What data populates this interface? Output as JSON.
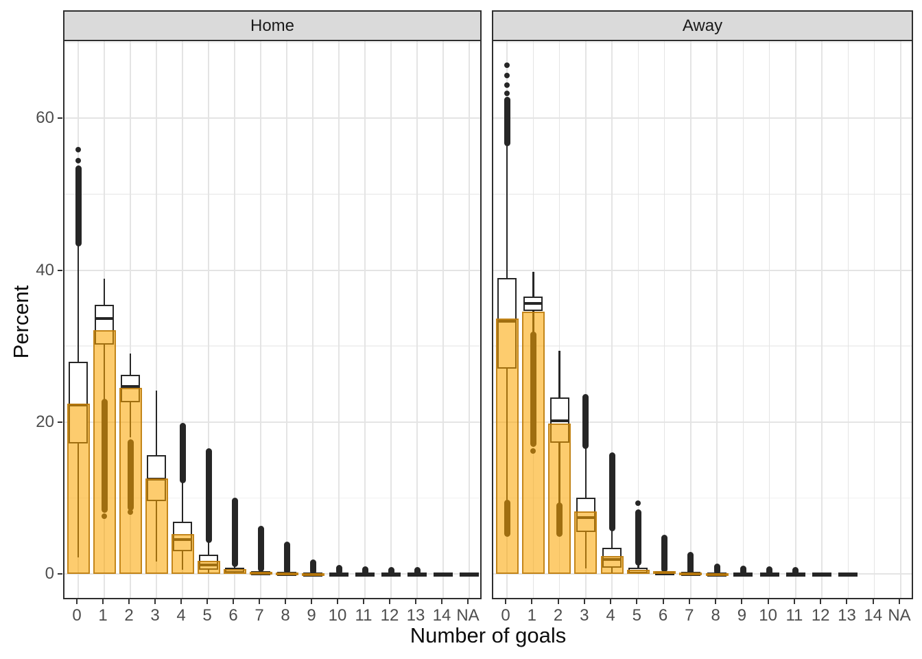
{
  "chart_data": {
    "type": "bar+boxplot",
    "xlabel": "Number of goals",
    "ylabel": "Percent",
    "categories": [
      "0",
      "1",
      "2",
      "3",
      "4",
      "5",
      "6",
      "7",
      "8",
      "9",
      "10",
      "11",
      "12",
      "13",
      "14",
      "NA"
    ],
    "y_axis": {
      "ticks": [
        0,
        20,
        40,
        60
      ],
      "minor": [
        10,
        30,
        50,
        70
      ],
      "ylim": [
        -3.3,
        70.2
      ]
    },
    "grid": "on",
    "legend": "none",
    "facets": [
      {
        "label": "Home",
        "items": [
          {
            "cat": "0",
            "bar": 22.4,
            "wh": 43.5,
            "q3": 27.9,
            "med": 22.2,
            "q1": 17.2,
            "wl": 2.2,
            "out_above": [
              43.5,
              53.4
            ],
            "dots_above": [
              54.4,
              55.9
            ],
            "out_below": null,
            "dots_below": null
          },
          {
            "cat": "1",
            "bar": 32.1,
            "wh": 38.9,
            "q3": 35.4,
            "med": 33.6,
            "q1": 30.2,
            "wl": 23.0,
            "out_above": null,
            "dots_above": null,
            "out_below": [
              8.4,
              22.7
            ],
            "dots_below": [
              7.6
            ]
          },
          {
            "cat": "2",
            "bar": 24.5,
            "wh": 29.0,
            "q3": 26.2,
            "med": 24.7,
            "q1": 22.6,
            "wl": 18.0,
            "out_above": null,
            "dots_above": null,
            "out_below": [
              8.7,
              17.4
            ],
            "dots_below": [
              8.1
            ]
          },
          {
            "cat": "3",
            "bar": 12.6,
            "wh": 24.1,
            "q3": 15.6,
            "med": 12.5,
            "q1": 9.6,
            "wl": 1.6,
            "out_above": null,
            "dots_above": null,
            "out_below": null,
            "dots_below": null
          },
          {
            "cat": "4",
            "bar": 5.2,
            "wh": 12.3,
            "q3": 6.9,
            "med": 4.5,
            "q1": 3.0,
            "wl": 0.5,
            "out_above": [
              12.3,
              19.5
            ],
            "dots_above": null,
            "out_below": null,
            "dots_below": null
          },
          {
            "cat": "5",
            "bar": 1.75,
            "wh": 4.2,
            "q3": 2.5,
            "med": 1.15,
            "q1": 0.54,
            "wl": 0.1,
            "out_above": [
              4.4,
              16.2
            ],
            "dots_above": null,
            "out_below": null,
            "dots_below": null
          },
          {
            "cat": "6",
            "bar": 0.63,
            "wh": 1.2,
            "q3": 0.84,
            "med": 0.39,
            "q1": 0.2,
            "wl": 0.05,
            "out_above": [
              1.3,
              9.7
            ],
            "dots_above": null,
            "out_below": null,
            "dots_below": null
          },
          {
            "cat": "7",
            "bar": 0.3,
            "wh": 0.6,
            "q3": 0.36,
            "med": 0.18,
            "q1": 0.05,
            "wl": null,
            "out_above": [
              0.6,
              6.0
            ],
            "dots_above": null,
            "out_below": null,
            "dots_below": null
          },
          {
            "cat": "8",
            "bar": 0.15,
            "wh": null,
            "q3": 0.25,
            "med": 0.12,
            "q1": 0.03,
            "wl": null,
            "out_above": [
              0.4,
              3.9
            ],
            "dots_above": null,
            "out_below": null,
            "dots_below": null
          },
          {
            "cat": "9",
            "bar": 0.06,
            "wh": null,
            "q3": 0.22,
            "med": 0.1,
            "q1": 0.02,
            "wl": null,
            "out_above": [
              0.3,
              1.5
            ],
            "dots_above": null,
            "out_below": null,
            "dots_below": null
          },
          {
            "cat": "10",
            "bar": null,
            "wh": null,
            "q3": 0.2,
            "med": 0.09,
            "q1": 0.02,
            "wl": null,
            "out_above": [
              0.25,
              0.8
            ],
            "dots_above": null,
            "out_below": null,
            "dots_below": null
          },
          {
            "cat": "11",
            "bar": null,
            "wh": null,
            "q3": 0.2,
            "med": 0.09,
            "q1": 0.02,
            "wl": null,
            "out_above": [
              0.2,
              0.6
            ],
            "dots_above": null,
            "out_below": null,
            "dots_below": null
          },
          {
            "cat": "12",
            "bar": null,
            "wh": null,
            "q3": 0.2,
            "med": 0.09,
            "q1": 0.02,
            "wl": null,
            "out_above": [
              0.18,
              0.5
            ],
            "dots_above": null,
            "out_below": null,
            "dots_below": null
          },
          {
            "cat": "13",
            "bar": null,
            "wh": null,
            "q3": 0.2,
            "med": 0.09,
            "q1": 0.02,
            "wl": null,
            "out_above": [
              0.18,
              0.5
            ],
            "dots_above": null,
            "out_below": null,
            "dots_below": null
          },
          {
            "cat": "14",
            "bar": null,
            "wh": null,
            "q3": 0.2,
            "med": null,
            "q1": 0.02,
            "wl": null,
            "out_above": null,
            "dots_above": null,
            "out_below": null,
            "dots_below": null
          },
          {
            "cat": "NA",
            "bar": null,
            "wh": null,
            "q3": 0.2,
            "med": null,
            "q1": 0.02,
            "wl": null,
            "out_above": null,
            "dots_above": null,
            "out_below": null,
            "dots_below": null
          }
        ]
      },
      {
        "label": "Away",
        "items": [
          {
            "cat": "0",
            "bar": 33.6,
            "wh": 56.7,
            "q3": 39.0,
            "med": 33.3,
            "q1": 27.0,
            "wl": 9.4,
            "out_above": [
              56.7,
              62.5
            ],
            "dots_above": [
              63.3,
              64.4,
              65.6,
              67.0
            ],
            "out_below": [
              5.2,
              9.4
            ],
            "dots_below": null
          },
          {
            "cat": "1",
            "bar": 34.5,
            "wh": 39.8,
            "q3": 36.5,
            "med": 35.6,
            "q1": 34.6,
            "wl": 31.6,
            "out_above": null,
            "dots_above": null,
            "out_below": [
              17.1,
              31.6
            ],
            "dots_below": [
              16.2
            ]
          },
          {
            "cat": "2",
            "bar": 19.8,
            "wh": 29.4,
            "q3": 23.2,
            "med": 20.2,
            "q1": 17.3,
            "wl": 9.0,
            "out_above": null,
            "dots_above": null,
            "out_below": [
              5.2,
              9.0
            ],
            "dots_below": null
          },
          {
            "cat": "3",
            "bar": 8.2,
            "wh": 16.8,
            "q3": 10.0,
            "med": 7.4,
            "q1": 5.5,
            "wl": 0.7,
            "out_above": [
              16.8,
              23.3
            ],
            "dots_above": null,
            "out_below": null,
            "dots_below": null
          },
          {
            "cat": "4",
            "bar": 2.35,
            "wh": 6.0,
            "q3": 3.4,
            "med": 1.9,
            "q1": 0.84,
            "wl": 0.05,
            "out_above": [
              6.0,
              15.6
            ],
            "dots_above": null,
            "out_below": null,
            "dots_below": null
          },
          {
            "cat": "5",
            "bar": 0.55,
            "wh": 1.3,
            "q3": 0.8,
            "med": 0.39,
            "q1": 0.1,
            "wl": 0.02,
            "out_above": [
              1.45,
              8.1
            ],
            "dots_above": [
              9.3
            ],
            "out_below": null,
            "dots_below": null
          },
          {
            "cat": "6",
            "bar": 0.35,
            "wh": null,
            "q3": 0.35,
            "med": 0.15,
            "q1": 0.02,
            "wl": null,
            "out_above": [
              0.5,
              4.8
            ],
            "dots_above": null,
            "out_below": null,
            "dots_below": null
          },
          {
            "cat": "7",
            "bar": 0.2,
            "wh": null,
            "q3": 0.25,
            "med": 0.1,
            "q1": 0.02,
            "wl": null,
            "out_above": [
              0.3,
              2.5
            ],
            "dots_above": null,
            "out_below": null,
            "dots_below": null
          },
          {
            "cat": "8",
            "bar": 0.1,
            "wh": null,
            "q3": 0.2,
            "med": 0.08,
            "q1": 0.02,
            "wl": null,
            "out_above": [
              0.25,
              1.0
            ],
            "dots_above": null,
            "out_below": null,
            "dots_below": null
          },
          {
            "cat": "9",
            "bar": null,
            "wh": null,
            "q3": 0.2,
            "med": 0.08,
            "q1": 0.02,
            "wl": null,
            "out_above": [
              0.2,
              0.7
            ],
            "dots_above": null,
            "out_below": null,
            "dots_below": null
          },
          {
            "cat": "10",
            "bar": null,
            "wh": null,
            "q3": 0.2,
            "med": 0.08,
            "q1": 0.02,
            "wl": null,
            "out_above": [
              0.2,
              0.6
            ],
            "dots_above": null,
            "out_below": null,
            "dots_below": null
          },
          {
            "cat": "11",
            "bar": null,
            "wh": null,
            "q3": 0.2,
            "med": 0.08,
            "q1": 0.02,
            "wl": null,
            "out_above": [
              0.15,
              0.5
            ],
            "dots_above": null,
            "out_below": null,
            "dots_below": null
          },
          {
            "cat": "12",
            "bar": null,
            "wh": null,
            "q3": 0.2,
            "med": null,
            "q1": 0.02,
            "wl": null,
            "out_above": null,
            "dots_above": null,
            "out_below": null,
            "dots_below": null
          },
          {
            "cat": "13",
            "bar": null,
            "wh": null,
            "q3": 0.2,
            "med": null,
            "q1": 0.02,
            "wl": null,
            "out_above": null,
            "dots_above": null,
            "out_below": null,
            "dots_below": null
          },
          {
            "cat": "14",
            "bar": null,
            "wh": null,
            "q3": null,
            "med": null,
            "q1": null,
            "wl": null,
            "out_above": null,
            "dots_above": null,
            "out_below": null,
            "dots_below": null
          },
          {
            "cat": "NA",
            "bar": null,
            "wh": null,
            "q3": null,
            "med": null,
            "q1": null,
            "wl": null,
            "out_above": null,
            "dots_above": null,
            "out_below": null,
            "dots_below": null
          }
        ]
      }
    ]
  },
  "colors": {
    "bar_fill": "rgba(251,166,0,0.57)",
    "bar_border": "rgba(185,120,10,0.85)",
    "box_stroke": "#262626",
    "strip_bg": "#dadada",
    "panel_border": "#2e2e2e",
    "grid_major": "#e4e4e4",
    "grid_minor": "#f1f1f1",
    "tick_text": "#4d4d4d",
    "title_text": "#0d0d0d"
  }
}
